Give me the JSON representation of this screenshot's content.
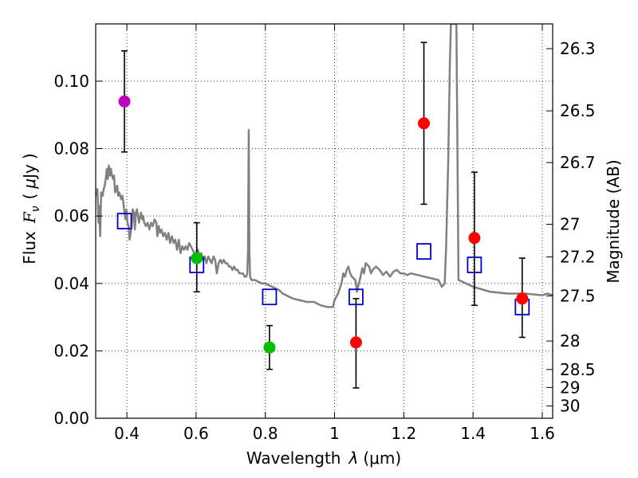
{
  "chart_data": {
    "type": "scatter",
    "xlabel": "Wavelength  λ (μm)",
    "ylabel": "Flux  F_ν  ( μJy )",
    "ylabel_parts": {
      "prefix": "Flux",
      "symbol": "F",
      "subscript": "ν",
      "unit_open": "(",
      "unit_mu": "μ",
      "unit_rest": "Jy",
      "unit_close": ")"
    },
    "xlabel_parts": {
      "prefix": "Wavelength",
      "symbol": "λ",
      "unit": "(μm)"
    },
    "y2label": "Magnitude (AB)",
    "xlim": [
      0.31,
      1.63
    ],
    "ylim": [
      0.0,
      0.117
    ],
    "grid": true,
    "x_ticks": [
      0.4,
      0.6,
      0.8,
      1.0,
      1.2,
      1.4,
      1.6
    ],
    "x_tick_labels": [
      "0.4",
      "0.6",
      "0.8",
      "1",
      "1.2",
      "1.4",
      "1.6"
    ],
    "y_ticks": [
      0.0,
      0.02,
      0.04,
      0.06,
      0.08,
      0.1
    ],
    "y_tick_labels": [
      "0.00",
      "0.02",
      "0.04",
      "0.06",
      "0.08",
      "0.10"
    ],
    "mag_ticks": [
      26.3,
      26.5,
      26.7,
      27,
      27.2,
      27.5,
      28,
      28.5,
      29,
      30
    ],
    "mag_tick_labels": [
      "26.3",
      "26.5",
      "26.7",
      "27",
      "27.2",
      "27.5",
      "28",
      "28.5",
      "29",
      "30"
    ],
    "observed": [
      {
        "x": 0.393,
        "y": 0.094,
        "err_low": 0.015,
        "err_high": 0.015,
        "color": "#bf00bf"
      },
      {
        "x": 0.602,
        "y": 0.0475,
        "err_low": 0.01,
        "err_high": 0.0105,
        "color": "#00bf00"
      },
      {
        "x": 0.812,
        "y": 0.021,
        "err_low": 0.0065,
        "err_high": 0.0065,
        "color": "#00bf00"
      },
      {
        "x": 1.062,
        "y": 0.0225,
        "err_low": 0.0135,
        "err_high": 0.013,
        "color": "#ff0000"
      },
      {
        "x": 1.258,
        "y": 0.0875,
        "err_low": 0.024,
        "err_high": 0.024,
        "color": "#ff0000"
      },
      {
        "x": 1.404,
        "y": 0.0535,
        "err_low": 0.02,
        "err_high": 0.0195,
        "color": "#ff0000"
      },
      {
        "x": 1.542,
        "y": 0.0355,
        "err_low": 0.0115,
        "err_high": 0.012,
        "color": "#ff0000"
      }
    ],
    "model_photometry": {
      "color": "#0000cc",
      "points": [
        {
          "x": 0.393,
          "y": 0.0585
        },
        {
          "x": 0.602,
          "y": 0.0455
        },
        {
          "x": 0.812,
          "y": 0.036
        },
        {
          "x": 1.062,
          "y": 0.036
        },
        {
          "x": 1.258,
          "y": 0.0495
        },
        {
          "x": 1.404,
          "y": 0.0455
        },
        {
          "x": 1.542,
          "y": 0.033
        }
      ]
    },
    "spectrum": {
      "color": "#808080",
      "points": [
        [
          0.31,
          0.066
        ],
        [
          0.315,
          0.068
        ],
        [
          0.318,
          0.058
        ],
        [
          0.32,
          0.063
        ],
        [
          0.323,
          0.054
        ],
        [
          0.326,
          0.067
        ],
        [
          0.33,
          0.066
        ],
        [
          0.333,
          0.068
        ],
        [
          0.336,
          0.069
        ],
        [
          0.339,
          0.071
        ],
        [
          0.342,
          0.074
        ],
        [
          0.345,
          0.071
        ],
        [
          0.348,
          0.075
        ],
        [
          0.351,
          0.072
        ],
        [
          0.354,
          0.074
        ],
        [
          0.357,
          0.072
        ],
        [
          0.36,
          0.071
        ],
        [
          0.363,
          0.072
        ],
        [
          0.366,
          0.067
        ],
        [
          0.369,
          0.068
        ],
        [
          0.372,
          0.069
        ],
        [
          0.375,
          0.066
        ],
        [
          0.378,
          0.067
        ],
        [
          0.381,
          0.066
        ],
        [
          0.384,
          0.065
        ],
        [
          0.387,
          0.066
        ],
        [
          0.39,
          0.064
        ],
        [
          0.393,
          0.061
        ],
        [
          0.396,
          0.059
        ],
        [
          0.399,
          0.062
        ],
        [
          0.402,
          0.058
        ],
        [
          0.405,
          0.057
        ],
        [
          0.408,
          0.053
        ],
        [
          0.411,
          0.055
        ],
        [
          0.414,
          0.057
        ],
        [
          0.417,
          0.062
        ],
        [
          0.42,
          0.061
        ],
        [
          0.423,
          0.056
        ],
        [
          0.426,
          0.061
        ],
        [
          0.429,
          0.062
        ],
        [
          0.432,
          0.06
        ],
        [
          0.435,
          0.058
        ],
        [
          0.438,
          0.06
        ],
        [
          0.441,
          0.061
        ],
        [
          0.444,
          0.059
        ],
        [
          0.447,
          0.06
        ],
        [
          0.45,
          0.058
        ],
        [
          0.455,
          0.057
        ],
        [
          0.46,
          0.058
        ],
        [
          0.465,
          0.056
        ],
        [
          0.47,
          0.058
        ],
        [
          0.475,
          0.057
        ],
        [
          0.48,
          0.059
        ],
        [
          0.485,
          0.058
        ],
        [
          0.488,
          0.054
        ],
        [
          0.492,
          0.057
        ],
        [
          0.496,
          0.055
        ],
        [
          0.5,
          0.056
        ],
        [
          0.505,
          0.054
        ],
        [
          0.51,
          0.055
        ],
        [
          0.515,
          0.053
        ],
        [
          0.52,
          0.055
        ],
        [
          0.525,
          0.052
        ],
        [
          0.53,
          0.054
        ],
        [
          0.535,
          0.052
        ],
        [
          0.54,
          0.053
        ],
        [
          0.545,
          0.05
        ],
        [
          0.55,
          0.053
        ],
        [
          0.555,
          0.049
        ],
        [
          0.56,
          0.051
        ],
        [
          0.565,
          0.05
        ],
        [
          0.57,
          0.051
        ],
        [
          0.575,
          0.05
        ],
        [
          0.58,
          0.052
        ],
        [
          0.585,
          0.051
        ],
        [
          0.59,
          0.05
        ],
        [
          0.595,
          0.049
        ],
        [
          0.6,
          0.049
        ],
        [
          0.605,
          0.05
        ],
        [
          0.61,
          0.048
        ],
        [
          0.615,
          0.049
        ],
        [
          0.62,
          0.047
        ],
        [
          0.625,
          0.048
        ],
        [
          0.63,
          0.046
        ],
        [
          0.635,
          0.048
        ],
        [
          0.64,
          0.047
        ],
        [
          0.645,
          0.046
        ],
        [
          0.65,
          0.048
        ],
        [
          0.655,
          0.047
        ],
        [
          0.66,
          0.043
        ],
        [
          0.665,
          0.046
        ],
        [
          0.67,
          0.047
        ],
        [
          0.675,
          0.046
        ],
        [
          0.68,
          0.047
        ],
        [
          0.685,
          0.046
        ],
        [
          0.69,
          0.046
        ],
        [
          0.695,
          0.045
        ],
        [
          0.7,
          0.045
        ],
        [
          0.705,
          0.044
        ],
        [
          0.71,
          0.045
        ],
        [
          0.715,
          0.044
        ],
        [
          0.72,
          0.044
        ],
        [
          0.725,
          0.043
        ],
        [
          0.73,
          0.043
        ],
        [
          0.735,
          0.043
        ],
        [
          0.74,
          0.042
        ],
        [
          0.745,
          0.042
        ],
        [
          0.748,
          0.043
        ],
        [
          0.75,
          0.05
        ],
        [
          0.752,
          0.0855
        ],
        [
          0.754,
          0.05
        ],
        [
          0.756,
          0.042
        ],
        [
          0.76,
          0.041
        ],
        [
          0.765,
          0.041
        ],
        [
          0.77,
          0.041
        ],
        [
          0.78,
          0.0405
        ],
        [
          0.79,
          0.04
        ],
        [
          0.8,
          0.04
        ],
        [
          0.81,
          0.0395
        ],
        [
          0.82,
          0.039
        ],
        [
          0.83,
          0.0385
        ],
        [
          0.84,
          0.038
        ],
        [
          0.85,
          0.037
        ],
        [
          0.86,
          0.0365
        ],
        [
          0.87,
          0.036
        ],
        [
          0.88,
          0.0355
        ],
        [
          0.9,
          0.035
        ],
        [
          0.92,
          0.0345
        ],
        [
          0.94,
          0.0345
        ],
        [
          0.96,
          0.0335
        ],
        [
          0.98,
          0.033
        ],
        [
          0.99,
          0.033
        ],
        [
          0.995,
          0.033
        ],
        [
          1.0,
          0.035
        ],
        [
          1.005,
          0.036
        ],
        [
          1.01,
          0.037
        ],
        [
          1.015,
          0.0385
        ],
        [
          1.02,
          0.04
        ],
        [
          1.025,
          0.043
        ],
        [
          1.03,
          0.042
        ],
        [
          1.035,
          0.044
        ],
        [
          1.04,
          0.045
        ],
        [
          1.045,
          0.043
        ],
        [
          1.05,
          0.042
        ],
        [
          1.06,
          0.041
        ],
        [
          1.065,
          0.0375
        ],
        [
          1.07,
          0.04
        ],
        [
          1.075,
          0.042
        ],
        [
          1.08,
          0.0445
        ],
        [
          1.085,
          0.043
        ],
        [
          1.09,
          0.046
        ],
        [
          1.1,
          0.045
        ],
        [
          1.105,
          0.043
        ],
        [
          1.11,
          0.044
        ],
        [
          1.12,
          0.045
        ],
        [
          1.13,
          0.044
        ],
        [
          1.14,
          0.0425
        ],
        [
          1.15,
          0.0435
        ],
        [
          1.16,
          0.042
        ],
        [
          1.17,
          0.0435
        ],
        [
          1.18,
          0.044
        ],
        [
          1.19,
          0.043
        ],
        [
          1.2,
          0.043
        ],
        [
          1.21,
          0.0425
        ],
        [
          1.22,
          0.043
        ],
        [
          1.24,
          0.0425
        ],
        [
          1.26,
          0.042
        ],
        [
          1.28,
          0.0415
        ],
        [
          1.3,
          0.041
        ],
        [
          1.31,
          0.039
        ],
        [
          1.318,
          0.04
        ],
        [
          1.322,
          0.05
        ],
        [
          1.328,
          0.075
        ],
        [
          1.333,
          0.105
        ],
        [
          1.336,
          0.117
        ],
        [
          1.352,
          0.117
        ],
        [
          1.355,
          0.08
        ],
        [
          1.358,
          0.041
        ],
        [
          1.37,
          0.0405
        ],
        [
          1.4,
          0.039
        ],
        [
          1.45,
          0.0375
        ],
        [
          1.5,
          0.037
        ],
        [
          1.55,
          0.037
        ],
        [
          1.6,
          0.0365
        ],
        [
          1.615,
          0.037
        ],
        [
          1.63,
          0.0365
        ]
      ]
    }
  }
}
